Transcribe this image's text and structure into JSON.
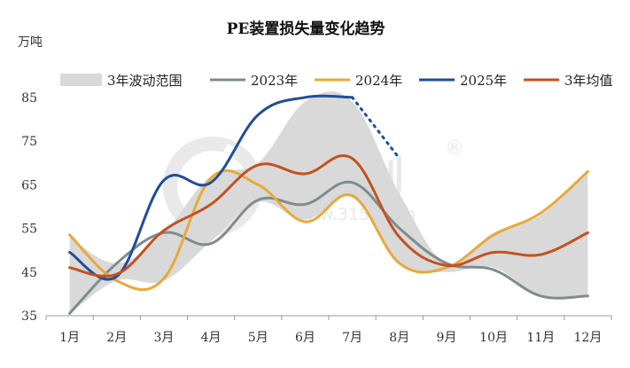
{
  "chart_data": {
    "type": "line",
    "title": "PE装置损失量变化趋势",
    "unit": "万吨",
    "categories": [
      "1月",
      "2月",
      "3月",
      "4月",
      "5月",
      "6月",
      "7月",
      "8月",
      "9月",
      "10月",
      "11月",
      "12月"
    ],
    "yticks": [
      "35",
      "45",
      "55",
      "65",
      "75",
      "85"
    ],
    "ylim": [
      35,
      88
    ],
    "legend_position": "top",
    "band": {
      "name": "3年波动范围",
      "color": "#d9d9d9",
      "lower": [
        35.5,
        43,
        43,
        52,
        61,
        57,
        62,
        47,
        45,
        46,
        39.5,
        39.5
      ],
      "upper": [
        53,
        47,
        54,
        67,
        70,
        84,
        84,
        63,
        47,
        54,
        58,
        68
      ]
    },
    "series": [
      {
        "name": "2023年",
        "color": "#7f8c8d",
        "values": [
          35.5,
          47,
          54,
          51.5,
          61.5,
          60.5,
          65.5,
          55,
          47,
          45.5,
          39.5,
          39.5
        ],
        "dashed_after": null
      },
      {
        "name": "2024年",
        "color": "#e8a93a",
        "values": [
          53.5,
          43,
          43.5,
          66.5,
          65,
          56.5,
          62.5,
          47,
          46,
          53.5,
          58.5,
          68
        ],
        "dashed_after": null
      },
      {
        "name": "2025年",
        "color": "#1f4e99",
        "values": [
          49.5,
          44,
          66,
          65.5,
          81,
          85,
          85,
          71,
          null,
          null,
          null,
          null
        ],
        "dashed_after": 6
      },
      {
        "name": "3年均值",
        "color": "#c2521f",
        "values": [
          46,
          44.5,
          54.5,
          60.5,
          69.5,
          67.5,
          71,
          53,
          46.5,
          49.5,
          49,
          54
        ],
        "dashed_after": null
      }
    ]
  },
  "watermark": {
    "text": "金联创",
    "registered": "®",
    "url": "www.315i.com"
  }
}
